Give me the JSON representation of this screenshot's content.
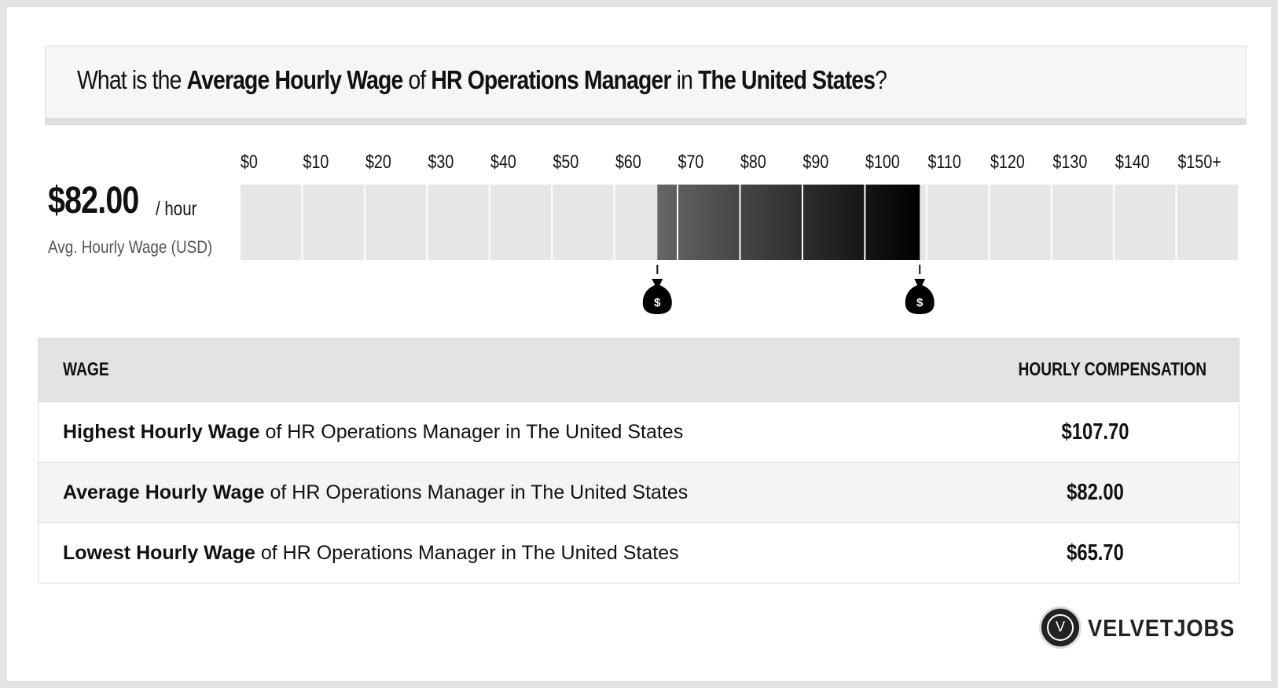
{
  "header": {
    "prefix": "What is the ",
    "strong1": "Average Hourly Wage",
    "mid1": " of ",
    "strong2": "HR Operations Manager",
    "mid2": " in ",
    "strong3": "The United States",
    "suffix": "?"
  },
  "summary": {
    "value": "$82.00",
    "unit": "/ hour",
    "label": "Avg. Hourly Wage (USD)"
  },
  "chart_data": {
    "type": "bar",
    "title": "",
    "tick_labels": [
      "$0",
      "$10",
      "$20",
      "$30",
      "$40",
      "$50",
      "$60",
      "$70",
      "$80",
      "$90",
      "$100",
      "$110",
      "$120",
      "$130",
      "$140",
      "$150+"
    ],
    "xlim": [
      0,
      150
    ],
    "range_low": 65.7,
    "range_high": 107.7,
    "average": 82.0,
    "markers": [
      {
        "value": 65.7,
        "icon": "money-bag-icon",
        "glyph": "$"
      },
      {
        "value": 107.7,
        "icon": "money-bag-icon",
        "glyph": "$"
      }
    ]
  },
  "table": {
    "headers": {
      "left": "WAGE",
      "right": "HOURLY COMPENSATION"
    },
    "rows": [
      {
        "strong": "Highest Hourly Wage",
        "rest": " of HR Operations Manager in The United States",
        "value": "$107.70"
      },
      {
        "strong": "Average Hourly Wage",
        "rest": " of HR Operations Manager in The United States",
        "value": "$82.00"
      },
      {
        "strong": "Lowest Hourly Wage",
        "rest": " of HR Operations Manager in The United States",
        "value": "$65.70"
      }
    ]
  },
  "brand": {
    "logo_letter": "V",
    "name": "VELVETJOBS"
  },
  "colors": {
    "bar_bg": "#e6e6e6",
    "range_start": "#666666",
    "range_end": "#000000",
    "frame": "#e3e3e3"
  }
}
